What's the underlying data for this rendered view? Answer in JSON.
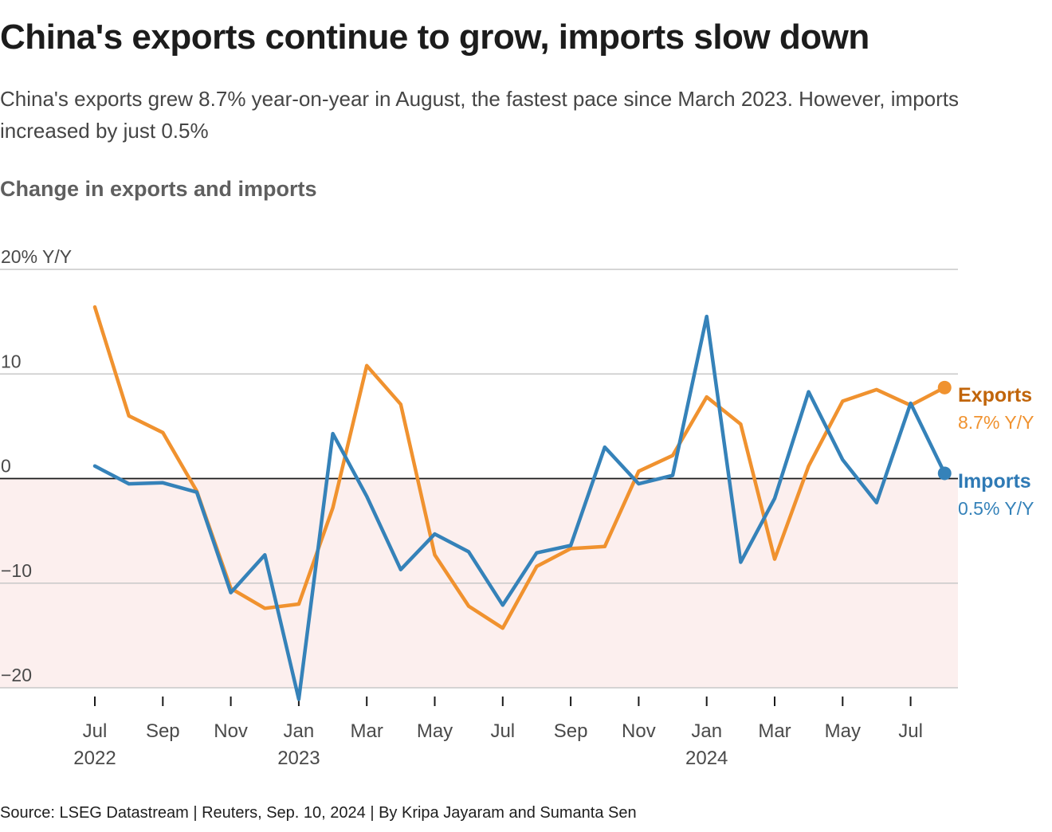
{
  "title": "China's exports continue to grow, imports slow down",
  "subtitle": "China's exports grew 8.7% year-on-year in August, the fastest pace since March 2023. However, imports increased by just 0.5%",
  "chart_heading": "Change in exports and imports",
  "source": "Source: LSEG Datastream | Reuters, Sep. 10, 2024 | By Kripa Jayaram and Sumanta Sen",
  "colors": {
    "exports": "#f0922f",
    "exports_label": "#c1650a",
    "imports": "#3582b9",
    "imports_label": "#2f7ab5",
    "negative_band": "#fcefee",
    "gridline": "#c8c8c8",
    "zero_line": "#1a1a1a",
    "axis_text": "#4a4a4a"
  },
  "chart_data": {
    "type": "line",
    "title": "Change in exports and imports",
    "ylabel": "20% Y/Y",
    "ylim": [
      -20,
      20
    ],
    "yticks": [
      20,
      10,
      0,
      -10,
      -20
    ],
    "ytick_labels": [
      "20% Y/Y",
      "10",
      "0",
      "−10",
      "−20"
    ],
    "grid": true,
    "negative_region_shaded": true,
    "x": [
      "2022-07",
      "2022-08",
      "2022-09",
      "2022-10",
      "2022-11",
      "2022-12",
      "2023-01",
      "2023-02",
      "2023-03",
      "2023-04",
      "2023-05",
      "2023-06",
      "2023-07",
      "2023-08",
      "2023-09",
      "2023-10",
      "2023-11",
      "2023-12",
      "2024-01",
      "2024-02",
      "2024-03",
      "2024-04",
      "2024-05",
      "2024-06",
      "2024-07",
      "2024-08"
    ],
    "x_ticks": [
      {
        "month": "Jul",
        "year": "2022"
      },
      {
        "month": "Sep",
        "year": ""
      },
      {
        "month": "Nov",
        "year": ""
      },
      {
        "month": "Jan",
        "year": "2023"
      },
      {
        "month": "Mar",
        "year": ""
      },
      {
        "month": "May",
        "year": ""
      },
      {
        "month": "Jul",
        "year": ""
      },
      {
        "month": "Sep",
        "year": ""
      },
      {
        "month": "Nov",
        "year": ""
      },
      {
        "month": "Jan",
        "year": "2024"
      },
      {
        "month": "Mar",
        "year": ""
      },
      {
        "month": "May",
        "year": ""
      },
      {
        "month": "Jul",
        "year": ""
      }
    ],
    "series": [
      {
        "name": "Exports",
        "end_label": "8.7% Y/Y",
        "values": [
          16.4,
          6.0,
          4.4,
          -1.2,
          -10.5,
          -12.4,
          -12.0,
          -2.8,
          10.8,
          7.1,
          -7.3,
          -12.2,
          -14.3,
          -8.4,
          -6.7,
          -6.5,
          0.7,
          2.2,
          7.8,
          5.2,
          -7.7,
          1.2,
          7.4,
          8.5,
          7.0,
          8.7
        ]
      },
      {
        "name": "Imports",
        "end_label": "0.5% Y/Y",
        "values": [
          1.2,
          -0.5,
          -0.4,
          -1.3,
          -10.9,
          -7.3,
          -21.1,
          4.3,
          -1.7,
          -8.7,
          -5.3,
          -7.0,
          -12.1,
          -7.1,
          -6.4,
          3.0,
          -0.5,
          0.3,
          15.5,
          -8.0,
          -1.9,
          8.3,
          1.8,
          -2.3,
          7.2,
          0.5
        ]
      }
    ]
  }
}
